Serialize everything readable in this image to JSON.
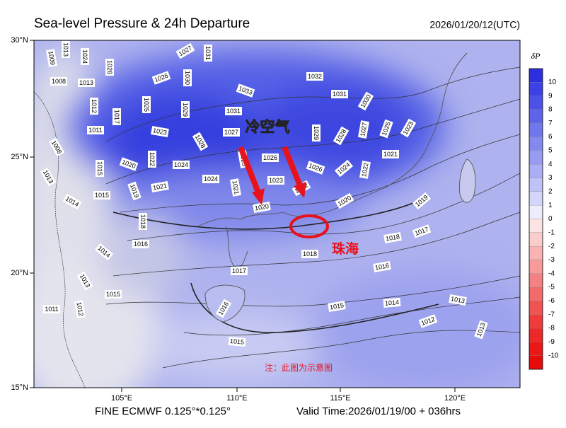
{
  "header": {
    "title": "Sea-level Pressure & 24h Departure",
    "timestamp": "2026/01/20/12(UTC)"
  },
  "lat_labels": [
    "30°N",
    "25°N",
    "20°N",
    "15°N"
  ],
  "lon_labels": [
    "105°E",
    "110°E",
    "115°E",
    "120°E"
  ],
  "colorbar": {
    "title": "δP",
    "labels": [
      10,
      9,
      8,
      7,
      6,
      5,
      4,
      3,
      2,
      1,
      0,
      -1,
      -2,
      -3,
      -4,
      -5,
      -6,
      -7,
      -8,
      -9,
      -10
    ]
  },
  "contour_labels": [
    1013,
    1009,
    1024,
    1008,
    1013,
    1026,
    1027,
    1031,
    1030,
    1026,
    1032,
    1033,
    1031,
    1030,
    1012,
    1025,
    1029,
    1031,
    1017,
    1011,
    1023,
    1027,
    1029,
    1028,
    1027,
    1025,
    1023,
    1008,
    1028,
    1026,
    1021,
    1015,
    1020,
    1022,
    1024,
    1025,
    1026,
    1024,
    1022,
    1013,
    1024,
    1023,
    1021,
    1021,
    1022,
    1019,
    1015,
    1014,
    1020,
    1020,
    1019,
    1018,
    1016,
    1017,
    1018,
    1014,
    1018,
    1017,
    1016,
    1013,
    1015,
    1011,
    1012,
    1015,
    1014,
    1013,
    1016,
    1012,
    1013,
    1015
  ],
  "annotations": {
    "cold_air": "冷空气",
    "zhuhai": "珠海",
    "note": "注：此图为示意图"
  },
  "footer": {
    "model": "FINE ECMWF 0.125°*0.125°",
    "valid_time": "Valid Time:2026/01/19/00 + 036hrs"
  }
}
